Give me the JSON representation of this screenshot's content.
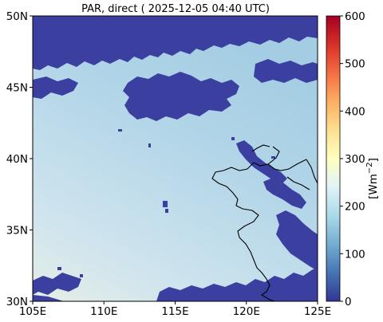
{
  "title": "PAR, direct ( 2025-12-05 04:40 UTC)",
  "chart_data": {
    "type": "heatmap",
    "title": "PAR, direct ( 2025-12-05 04:40 UTC)",
    "x_ticks": [
      "105E",
      "110E",
      "115E",
      "120E",
      "125E"
    ],
    "x_values": [
      105,
      110,
      115,
      120,
      125
    ],
    "y_ticks": [
      "30N",
      "35N",
      "40N",
      "45N",
      "50N"
    ],
    "y_values": [
      30,
      35,
      40,
      45,
      50
    ],
    "xlim": [
      105,
      125
    ],
    "ylim": [
      30,
      50
    ],
    "colorbar": {
      "label": "[Wm$^{-2}$]",
      "label_main": "[Wm",
      "label_sup": "−2",
      "label_end": "]",
      "ticks": [
        "0",
        "100",
        "200",
        "300",
        "400",
        "500",
        "600"
      ],
      "tick_values": [
        0,
        100,
        200,
        300,
        400,
        500,
        600
      ],
      "range": [
        0,
        600
      ],
      "colormap": "RdYlBu_r"
    },
    "colors": {
      "cloud": "#3a3fa0",
      "clear_background_low": "#dde9ef",
      "clear_background_high": "#a9d0e4",
      "coastline": "#000000"
    },
    "field_values_estimate": {
      "clear_sky_north": 170,
      "clear_sky_south": 215,
      "cloud": 0
    }
  }
}
